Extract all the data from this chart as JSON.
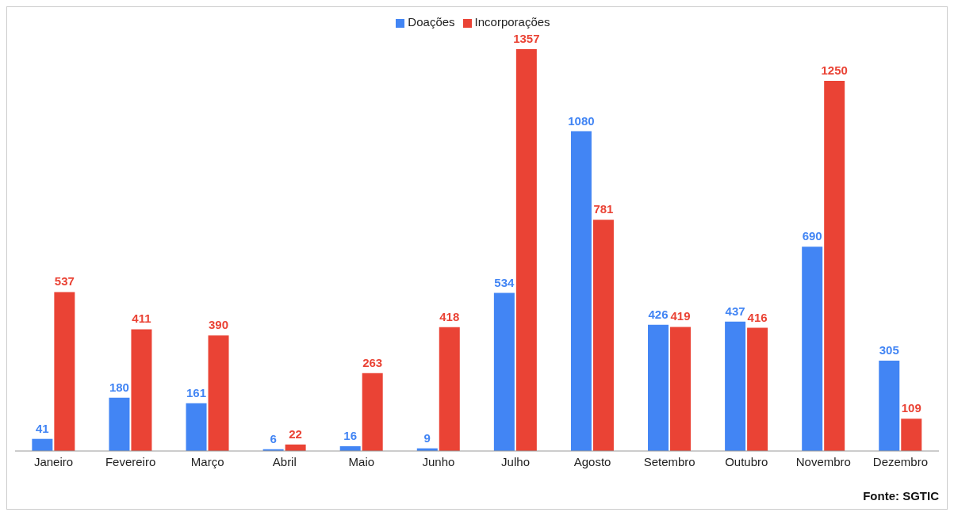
{
  "chart_data": {
    "type": "bar",
    "categories": [
      "Janeiro",
      "Fevereiro",
      "Março",
      "Abril",
      "Maio",
      "Junho",
      "Julho",
      "Agosto",
      "Setembro",
      "Outubro",
      "Novembro",
      "Dezembro"
    ],
    "series": [
      {
        "name": "Doações",
        "color": "#4285f4",
        "values": [
          41,
          180,
          161,
          6,
          16,
          9,
          534,
          1080,
          426,
          437,
          690,
          305
        ]
      },
      {
        "name": "Incorporações",
        "color": "#ea4335",
        "values": [
          537,
          411,
          390,
          22,
          263,
          418,
          1357,
          781,
          419,
          416,
          1250,
          109
        ]
      }
    ],
    "tick_labels": "x",
    "data_labels": true,
    "legend": "top",
    "grid": false,
    "annotations": [
      "Fonte: SGTIC"
    ]
  }
}
